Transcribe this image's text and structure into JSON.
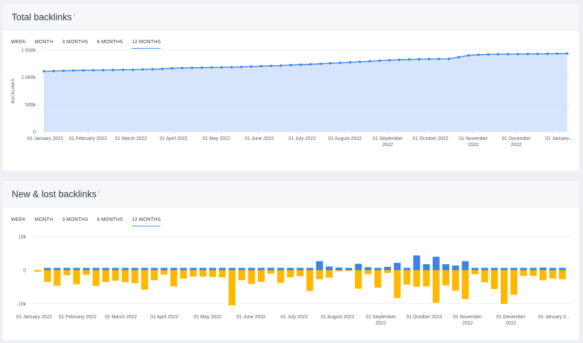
{
  "sections": [
    {
      "title": "Total backlinks",
      "info_icon": "i",
      "periods": [
        "WEEK",
        "MONTH",
        "3 MONTHS",
        "6 MONTHS",
        "12 MONTHS"
      ],
      "active_period": "12 MONTHS"
    },
    {
      "title": "New & lost backlinks",
      "info_icon": "i",
      "periods": [
        "WEEK",
        "MONTH",
        "3 MONTHS",
        "6 MONTHS",
        "12 MONTHS"
      ],
      "active_period": "12 MONTHS"
    }
  ],
  "colors": {
    "line": "#3d82e8",
    "area": "#cfe0fb",
    "new": "#3d82e8",
    "lost": "#ffb800",
    "grid": "#e3e6ea"
  },
  "chart_data": [
    {
      "type": "area",
      "ylabel": "BACKLINKS",
      "ylim": [
        0,
        1500000
      ],
      "yticks": [
        0,
        500000,
        1000000,
        1500000
      ],
      "ytick_labels": [
        "0",
        "500k",
        "1 000k",
        "1 500k"
      ],
      "xtick_labels": [
        "01 January 2022",
        "01 February 2022",
        "01 March 2022",
        "01 April 2022",
        "01 May 2022",
        "01 June 2022",
        "01 July 2022",
        "01 August 2022",
        "01 September\n2022",
        "01 October 2022",
        "01 November\n2022",
        "01 December\n2022",
        "01 January..."
      ],
      "values": [
        1110000,
        1115000,
        1120000,
        1125000,
        1128000,
        1130000,
        1132000,
        1135000,
        1138000,
        1140000,
        1145000,
        1148000,
        1155000,
        1165000,
        1172000,
        1175000,
        1177000,
        1180000,
        1182000,
        1186000,
        1190000,
        1197000,
        1205000,
        1210000,
        1215000,
        1225000,
        1232000,
        1240000,
        1248000,
        1258000,
        1265000,
        1275000,
        1285000,
        1295000,
        1305000,
        1315000,
        1322000,
        1328000,
        1332000,
        1335000,
        1337000,
        1339000,
        1370000,
        1402000,
        1415000,
        1420000,
        1423000,
        1425000,
        1427000,
        1428000,
        1430000,
        1432000,
        1435000,
        1437000
      ]
    },
    {
      "type": "bar",
      "ylim": [
        -12500,
        10000
      ],
      "yticks": [
        -10000,
        0,
        10000
      ],
      "ytick_labels": [
        "-10k",
        "0",
        "10k"
      ],
      "xtick_labels": [
        "01 January 2022",
        "01 February 2022",
        "01 March 2022",
        "01 April 2022",
        "01 May 2022",
        "01 June 2022",
        "01 July 2022",
        "01 August 2022",
        "01 September\n2022",
        "01 October 2022",
        "01 November\n2022",
        "01 December\n2022",
        "01 January 2..."
      ],
      "series": [
        {
          "key": "new",
          "values": [
            -400,
            700,
            700,
            700,
            700,
            700,
            700,
            700,
            700,
            700,
            700,
            700,
            700,
            700,
            700,
            700,
            700,
            700,
            700,
            700,
            700,
            700,
            700,
            700,
            700,
            700,
            700,
            700,
            700,
            2700,
            1100,
            800,
            700,
            1900,
            900,
            700,
            1000,
            2200,
            700,
            4400,
            1800,
            4000,
            1800,
            1400,
            2700,
            700,
            700,
            700,
            700,
            700,
            700,
            700,
            800,
            700,
            700
          ]
        },
        {
          "key": "lost",
          "values": [
            -400,
            -3500,
            -4600,
            -1500,
            -4200,
            -1400,
            -4700,
            -3500,
            -3100,
            -3600,
            -3900,
            -5800,
            -3000,
            -1300,
            -4800,
            -2500,
            -1900,
            -1900,
            -2000,
            -2100,
            -10500,
            -3000,
            -4100,
            -3500,
            -1000,
            -3800,
            -2100,
            -1800,
            -6200,
            -2700,
            -2200,
            -300,
            -200,
            -5500,
            -1200,
            -5200,
            -800,
            -8300,
            -4300,
            -4900,
            -4800,
            -9700,
            -4500,
            -6100,
            -8600,
            -1200,
            -3600,
            -5600,
            -10000,
            -7300,
            -1700,
            -1700,
            -3000,
            -2500,
            -2700
          ]
        }
      ]
    }
  ]
}
